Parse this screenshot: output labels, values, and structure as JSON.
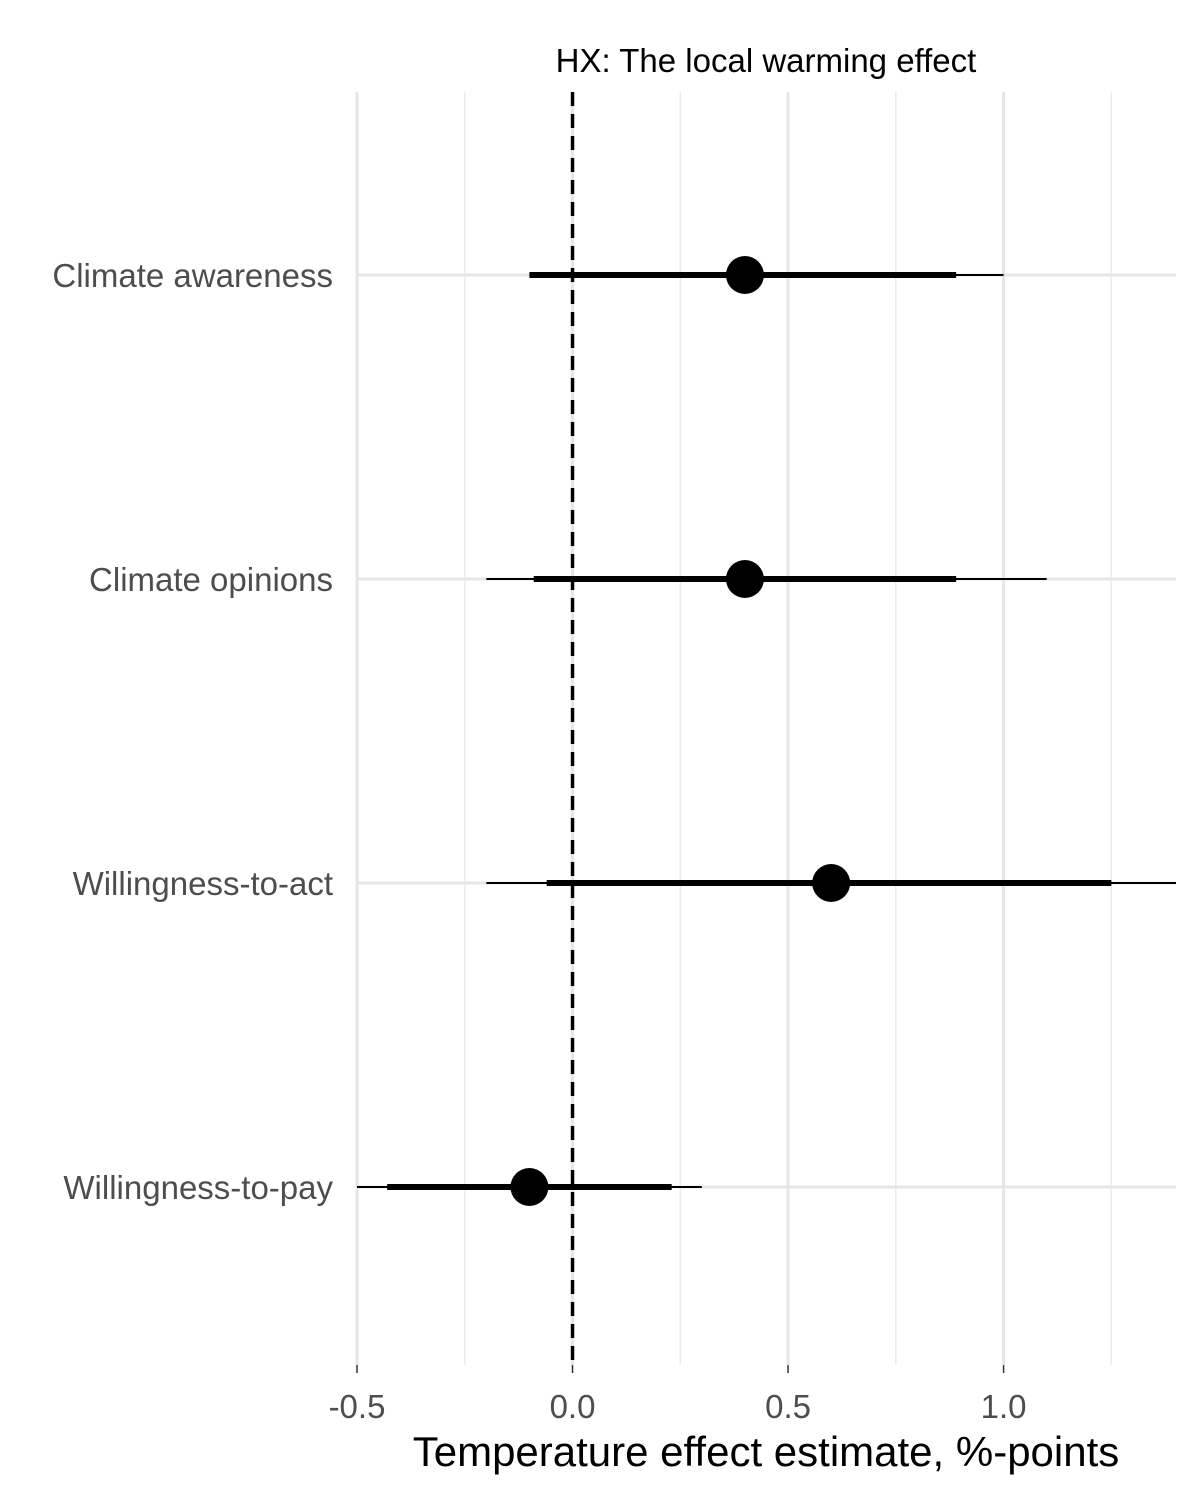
{
  "chart_data": {
    "type": "forest",
    "title": "HX: The local warming effect",
    "xlabel": "Temperature effect estimate,  %-points",
    "ylabel": "",
    "xlim": [
      -0.5,
      1.4
    ],
    "xticks": [
      -0.5,
      0.0,
      0.5,
      1.0
    ],
    "xtick_labels": [
      "-0.5",
      "0.0",
      "0.5",
      "1.0"
    ],
    "minor_xticks": [
      -0.25,
      0.25,
      0.75,
      1.25
    ],
    "reference_line": 0.0,
    "grid": true,
    "series": [
      {
        "name": "Climate awareness",
        "estimate": 0.4,
        "ci_inner": [
          -0.1,
          0.89
        ],
        "ci_outer": [
          -0.1,
          1.0
        ]
      },
      {
        "name": "Climate opinions",
        "estimate": 0.4,
        "ci_inner": [
          -0.09,
          0.89
        ],
        "ci_outer": [
          -0.2,
          1.1
        ]
      },
      {
        "name": "Willingness-to-act",
        "estimate": 0.6,
        "ci_inner": [
          -0.06,
          1.25
        ],
        "ci_outer": [
          -0.2,
          1.4
        ]
      },
      {
        "name": "Willingness-to-pay",
        "estimate": -0.1,
        "ci_inner": [
          -0.43,
          0.23
        ],
        "ci_outer": [
          -0.5,
          0.3
        ]
      }
    ]
  }
}
